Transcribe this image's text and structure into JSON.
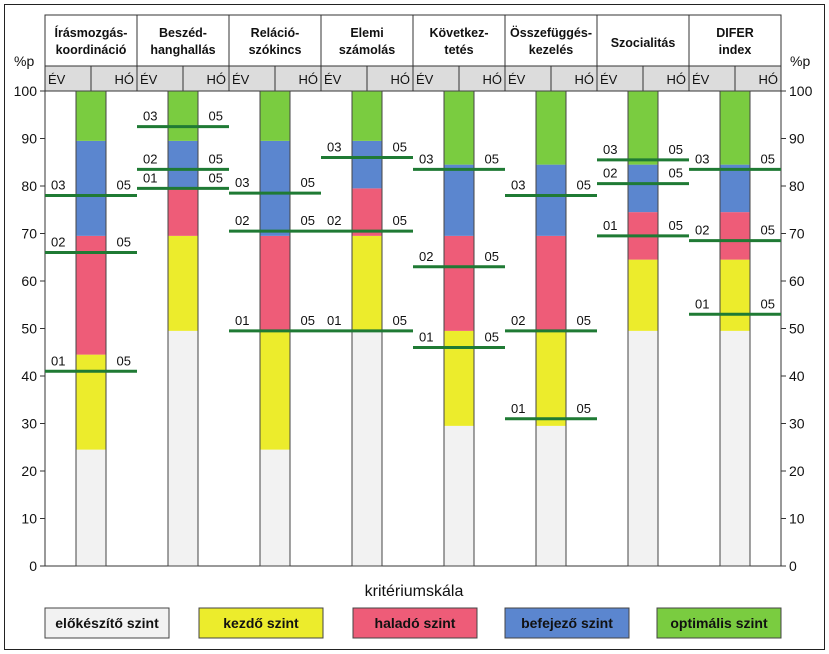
{
  "chart_data": {
    "type": "stacked-bar-with-markers",
    "y_unit": "%p",
    "ylim": [
      0,
      100
    ],
    "yticks": [
      0,
      10,
      20,
      30,
      40,
      50,
      60,
      70,
      80,
      90,
      100
    ],
    "xlabel": "kritériumskála",
    "sub_headers": [
      "ÉV",
      "HÓ"
    ],
    "levels": [
      {
        "name": "előkészítő szint",
        "color": "#f2f2f2"
      },
      {
        "name": "kezdő szint",
        "color": "#ecec2c"
      },
      {
        "name": "haladó szint",
        "color": "#ee5c78"
      },
      {
        "name": "befejező szint",
        "color": "#5b86cf"
      },
      {
        "name": "optimális szint",
        "color": "#7acc40"
      }
    ],
    "categories": [
      {
        "title": [
          "Írásmozgás-",
          "koordináció"
        ],
        "bands": [
          0,
          24.5,
          44.5,
          69.5,
          89.5,
          100
        ],
        "markers": [
          {
            "year": "01",
            "month": "05",
            "value": 41
          },
          {
            "year": "02",
            "month": "05",
            "value": 66
          },
          {
            "year": "03",
            "month": "05",
            "value": 78
          }
        ]
      },
      {
        "title": [
          "Beszéd-",
          "hanghallás"
        ],
        "bands": [
          0,
          49.5,
          69.5,
          79.5,
          89.5,
          100
        ],
        "markers": [
          {
            "year": "01",
            "month": "05",
            "value": 79.5
          },
          {
            "year": "02",
            "month": "05",
            "value": 83.5
          },
          {
            "year": "03",
            "month": "05",
            "value": 92.5
          }
        ]
      },
      {
        "title": [
          "Reláció-",
          "szókincs"
        ],
        "bands": [
          0,
          24.5,
          49.5,
          69.5,
          89.5,
          100
        ],
        "markers": [
          {
            "year": "01",
            "month": "05",
            "value": 49.5
          },
          {
            "year": "02",
            "month": "05",
            "value": 70.5
          },
          {
            "year": "03",
            "month": "05",
            "value": 78.5
          }
        ]
      },
      {
        "title": [
          "Elemi",
          "számolás"
        ],
        "bands": [
          0,
          49.5,
          69.5,
          79.5,
          89.5,
          100
        ],
        "markers": [
          {
            "year": "01",
            "month": "05",
            "value": 49.5
          },
          {
            "year": "02",
            "month": "05",
            "value": 70.5
          },
          {
            "year": "03",
            "month": "05",
            "value": 86
          }
        ]
      },
      {
        "title": [
          "Következ-",
          "tetés"
        ],
        "bands": [
          0,
          29.5,
          49.5,
          69.5,
          84.5,
          100
        ],
        "markers": [
          {
            "year": "01",
            "month": "05",
            "value": 46
          },
          {
            "year": "02",
            "month": "05",
            "value": 63
          },
          {
            "year": "03",
            "month": "05",
            "value": 83.5
          }
        ]
      },
      {
        "title": [
          "Összefüggés-",
          "kezelés"
        ],
        "bands": [
          0,
          29.5,
          49.5,
          69.5,
          84.5,
          100
        ],
        "markers": [
          {
            "year": "01",
            "month": "05",
            "value": 31
          },
          {
            "year": "02",
            "month": "05",
            "value": 49.5
          },
          {
            "year": "03",
            "month": "05",
            "value": 78
          }
        ]
      },
      {
        "title": [
          "Szocialitás"
        ],
        "bands": [
          0,
          49.5,
          64.5,
          74.5,
          84.5,
          100
        ],
        "markers": [
          {
            "year": "01",
            "month": "05",
            "value": 69.5
          },
          {
            "year": "02",
            "month": "05",
            "value": 80.5
          },
          {
            "year": "03",
            "month": "05",
            "value": 85.5
          }
        ]
      },
      {
        "title": [
          "DIFER",
          "index"
        ],
        "bands": [
          0,
          49.5,
          64.5,
          74.5,
          84.5,
          100
        ],
        "markers": [
          {
            "year": "01",
            "month": "05",
            "value": 53
          },
          {
            "year": "02",
            "month": "05",
            "value": 68.5
          },
          {
            "year": "03",
            "month": "05",
            "value": 83.5
          }
        ]
      }
    ]
  }
}
